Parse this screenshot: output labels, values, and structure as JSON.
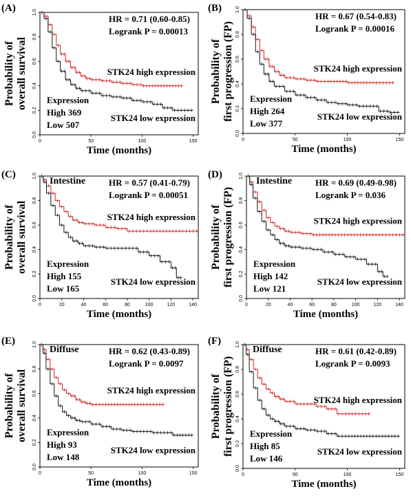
{
  "chart_data": [
    {
      "type": "line",
      "panel": "(A)",
      "subgroup": "",
      "ylabel": [
        "Probability of",
        "overall survival"
      ],
      "xlabel": "Time (months)",
      "xticks": [
        0,
        50,
        100,
        150
      ],
      "yticks": [
        "0.0",
        "0.2",
        "0.4",
        "0.6",
        "0.8",
        "1.0"
      ],
      "xlim": [
        0,
        155
      ],
      "ylim": [
        0,
        1
      ],
      "hr": "HR = 0.71 (0.60-0.85)",
      "logrank": "Logrank P = 0.00013",
      "expression_title": "Expression",
      "n_high": "High 369",
      "n_low": "Low  507",
      "series": [
        {
          "name": "STK24 high expression",
          "color": "#cc2222",
          "x": [
            0,
            4,
            8,
            12,
            16,
            20,
            25,
            30,
            35,
            40,
            45,
            50,
            60,
            70,
            80,
            90,
            100,
            120,
            140
          ],
          "y": [
            1.0,
            0.97,
            0.9,
            0.82,
            0.73,
            0.66,
            0.6,
            0.55,
            0.51,
            0.48,
            0.46,
            0.45,
            0.44,
            0.43,
            0.42,
            0.41,
            0.4,
            0.4,
            0.4
          ]
        },
        {
          "name": "STK24 low expression",
          "color": "#111111",
          "x": [
            0,
            4,
            8,
            12,
            16,
            20,
            25,
            30,
            35,
            40,
            50,
            60,
            70,
            80,
            90,
            100,
            110,
            120,
            130,
            140,
            150
          ],
          "y": [
            1.0,
            0.95,
            0.84,
            0.71,
            0.6,
            0.52,
            0.45,
            0.41,
            0.38,
            0.36,
            0.34,
            0.32,
            0.31,
            0.3,
            0.28,
            0.27,
            0.25,
            0.22,
            0.2,
            0.2,
            0.2
          ]
        }
      ]
    },
    {
      "type": "line",
      "panel": "(B)",
      "subgroup": "",
      "ylabel": [
        "Probability of",
        "first progression (FP)"
      ],
      "xlabel": "Time (months)",
      "xticks": [
        0,
        50,
        100,
        150
      ],
      "yticks": [
        "0.0",
        "0.2",
        "0.4",
        "0.6",
        "0.8",
        "1.0"
      ],
      "xlim": [
        0,
        155
      ],
      "ylim": [
        0,
        1
      ],
      "hr": "HR = 0.67 (0.54-0.83)",
      "logrank": "Logrank P = 0.00016",
      "expression_title": "Expression",
      "n_high": "High 264",
      "n_low": "Low  377",
      "series": [
        {
          "name": "STK24 high expression",
          "color": "#cc2222",
          "x": [
            0,
            4,
            8,
            12,
            16,
            20,
            25,
            30,
            35,
            40,
            50,
            60,
            70,
            80,
            100,
            120,
            145
          ],
          "y": [
            1.0,
            0.95,
            0.86,
            0.76,
            0.67,
            0.6,
            0.54,
            0.5,
            0.47,
            0.45,
            0.44,
            0.43,
            0.42,
            0.42,
            0.41,
            0.41,
            0.41
          ]
        },
        {
          "name": "STK24 low expression",
          "color": "#111111",
          "x": [
            0,
            4,
            8,
            12,
            16,
            20,
            25,
            30,
            40,
            50,
            60,
            70,
            80,
            90,
            100,
            110,
            120,
            130,
            140,
            150
          ],
          "y": [
            1.0,
            0.93,
            0.8,
            0.66,
            0.56,
            0.48,
            0.42,
            0.38,
            0.34,
            0.31,
            0.29,
            0.27,
            0.25,
            0.24,
            0.23,
            0.22,
            0.22,
            0.18,
            0.17,
            0.17
          ]
        }
      ]
    },
    {
      "type": "line",
      "panel": "(C)",
      "subgroup": "Intestine",
      "ylabel": [
        "Probability of",
        "overall survival"
      ],
      "xlabel": "Time (months)",
      "xticks": [
        0,
        20,
        40,
        60,
        80,
        100,
        120,
        140
      ],
      "yticks": [
        "0.0",
        "0.2",
        "0.4",
        "0.6",
        "0.8",
        "1.0"
      ],
      "xlim": [
        0,
        145
      ],
      "ylim": [
        0,
        1
      ],
      "hr": "HR = 0.57 (0.41-0.79)",
      "logrank": "Logrank P = 0.00051",
      "expression_title": "Expression",
      "n_high": "High 155",
      "n_low": "Low  165",
      "series": [
        {
          "name": "STK24 high expression",
          "color": "#cc2222",
          "x": [
            0,
            3,
            6,
            10,
            14,
            18,
            22,
            26,
            30,
            35,
            40,
            50,
            60,
            70,
            80,
            90,
            100,
            120,
            145
          ],
          "y": [
            1.0,
            0.97,
            0.92,
            0.86,
            0.8,
            0.75,
            0.71,
            0.67,
            0.64,
            0.62,
            0.61,
            0.6,
            0.58,
            0.57,
            0.55,
            0.55,
            0.55,
            0.55,
            0.55
          ]
        },
        {
          "name": "STK24 low expression",
          "color": "#111111",
          "x": [
            0,
            3,
            6,
            10,
            14,
            18,
            22,
            26,
            30,
            35,
            40,
            50,
            60,
            70,
            80,
            90,
            100,
            110,
            120,
            125,
            130
          ],
          "y": [
            1.0,
            0.95,
            0.86,
            0.76,
            0.68,
            0.6,
            0.54,
            0.5,
            0.47,
            0.45,
            0.43,
            0.42,
            0.41,
            0.41,
            0.41,
            0.38,
            0.35,
            0.3,
            0.25,
            0.17,
            0.17
          ]
        }
      ]
    },
    {
      "type": "line",
      "panel": "(D)",
      "subgroup": "Intestine",
      "ylabel": [
        "Probability of",
        "first progression (FP)"
      ],
      "xlabel": "Time (months)",
      "xticks": [
        0,
        20,
        40,
        60,
        80,
        100,
        120,
        140
      ],
      "yticks": [
        "0.0",
        "0.2",
        "0.4",
        "0.6",
        "0.8",
        "1.0"
      ],
      "xlim": [
        0,
        145
      ],
      "ylim": [
        0,
        1
      ],
      "hr": "HR = 0.69 (0.49-0.98)",
      "logrank": "Logrank P = 0.036",
      "expression_title": "Expression",
      "n_high": "High 142",
      "n_low": "Low  121",
      "series": [
        {
          "name": "STK24 high expression",
          "color": "#cc2222",
          "x": [
            0,
            3,
            6,
            10,
            14,
            18,
            22,
            26,
            30,
            35,
            40,
            50,
            60,
            80,
            100,
            120,
            145
          ],
          "y": [
            1.0,
            0.95,
            0.87,
            0.79,
            0.72,
            0.66,
            0.62,
            0.59,
            0.57,
            0.55,
            0.54,
            0.53,
            0.52,
            0.52,
            0.52,
            0.52,
            0.52
          ]
        },
        {
          "name": "STK24 low expression",
          "color": "#111111",
          "x": [
            0,
            3,
            6,
            10,
            14,
            18,
            22,
            26,
            30,
            35,
            40,
            50,
            60,
            70,
            80,
            90,
            100,
            110,
            120,
            125,
            130
          ],
          "y": [
            1.0,
            0.93,
            0.82,
            0.71,
            0.63,
            0.56,
            0.52,
            0.48,
            0.45,
            0.43,
            0.42,
            0.41,
            0.4,
            0.38,
            0.36,
            0.34,
            0.32,
            0.28,
            0.22,
            0.18,
            0.18
          ]
        }
      ]
    },
    {
      "type": "line",
      "panel": "(E)",
      "subgroup": "Diffuse",
      "ylabel": [
        "Probability of",
        "overall survival"
      ],
      "xlabel": "Time (months)",
      "xticks": [
        0,
        50,
        100,
        150
      ],
      "yticks": [
        "0.0",
        "0.2",
        "0.4",
        "0.6",
        "0.8",
        "1.0"
      ],
      "xlim": [
        0,
        155
      ],
      "ylim": [
        0,
        1
      ],
      "hr": "HR = 0.62 (0.43-0.89)",
      "logrank": "Logrank P = 0.0097",
      "expression_title": "Expression",
      "n_high": "High   93",
      "n_low": "Low  148",
      "series": [
        {
          "name": "STK24 high expression",
          "color": "#cc2222",
          "x": [
            0,
            3,
            6,
            10,
            14,
            18,
            22,
            26,
            30,
            35,
            40,
            45,
            50,
            60,
            80,
            100,
            122
          ],
          "y": [
            1.0,
            0.96,
            0.88,
            0.8,
            0.73,
            0.68,
            0.63,
            0.6,
            0.58,
            0.55,
            0.53,
            0.52,
            0.51,
            0.51,
            0.51,
            0.51,
            0.51
          ]
        },
        {
          "name": "STK24 low expression",
          "color": "#111111",
          "x": [
            0,
            3,
            6,
            10,
            14,
            18,
            22,
            26,
            30,
            35,
            40,
            50,
            60,
            70,
            80,
            90,
            100,
            110,
            120,
            130,
            150
          ],
          "y": [
            1.0,
            0.93,
            0.8,
            0.68,
            0.58,
            0.5,
            0.45,
            0.42,
            0.4,
            0.38,
            0.37,
            0.35,
            0.33,
            0.31,
            0.3,
            0.29,
            0.29,
            0.28,
            0.28,
            0.26,
            0.26
          ]
        }
      ]
    },
    {
      "type": "line",
      "panel": "(F)",
      "subgroup": "Diffuse",
      "ylabel": [
        "Probability of",
        "first progression (FP)"
      ],
      "xlabel": "Time (months)",
      "xticks": [
        0,
        50,
        100,
        150
      ],
      "yticks": [
        "0.0",
        "0.2",
        "0.4",
        "0.6",
        "0.8",
        "1.0"
      ],
      "xlim": [
        0,
        155
      ],
      "ylim": [
        0,
        1
      ],
      "hr": "HR = 0.61 (0.42-0.89)",
      "logrank": "Logrank P = 0.0093",
      "expression_title": "Expression",
      "n_high": "High   85",
      "n_low": "Low  146",
      "series": [
        {
          "name": "STK24 high expression",
          "color": "#cc2222",
          "x": [
            0,
            3,
            6,
            10,
            14,
            18,
            22,
            26,
            30,
            35,
            40,
            50,
            60,
            70,
            80,
            90,
            100,
            122
          ],
          "y": [
            1.0,
            0.96,
            0.88,
            0.8,
            0.73,
            0.68,
            0.64,
            0.61,
            0.58,
            0.56,
            0.54,
            0.52,
            0.52,
            0.5,
            0.48,
            0.44,
            0.44,
            0.44
          ]
        },
        {
          "name": "STK24 low expression",
          "color": "#111111",
          "x": [
            0,
            3,
            6,
            10,
            14,
            18,
            22,
            26,
            30,
            35,
            40,
            50,
            60,
            70,
            80,
            90,
            100,
            120,
            150
          ],
          "y": [
            1.0,
            0.92,
            0.78,
            0.65,
            0.55,
            0.48,
            0.43,
            0.4,
            0.38,
            0.36,
            0.34,
            0.32,
            0.31,
            0.3,
            0.28,
            0.26,
            0.26,
            0.26,
            0.26
          ]
        }
      ]
    }
  ]
}
